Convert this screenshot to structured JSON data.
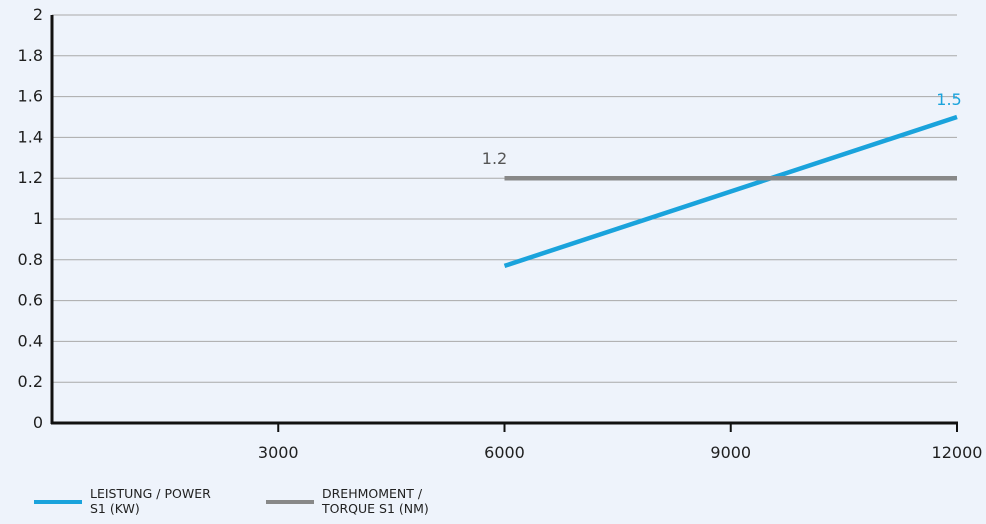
{
  "chart_data": {
    "type": "line",
    "xlim": [
      0,
      12000
    ],
    "ylim": [
      0,
      2
    ],
    "x_ticks": [
      3000,
      6000,
      9000,
      12000
    ],
    "x_tick_labels": [
      "3000",
      "6000",
      "9000",
      "12000"
    ],
    "y_ticks": [
      0,
      0.2,
      0.4,
      0.6,
      0.8,
      1,
      1.2,
      1.4,
      1.6,
      1.8,
      2
    ],
    "y_tick_labels": [
      "0",
      "0.2",
      "0.4",
      "0.6",
      "0.8",
      "1",
      "1.2",
      "1.4",
      "1.6",
      "1.8",
      "2"
    ],
    "grid": "horizontal",
    "legend_position": "bottom-left",
    "series": [
      {
        "name": "LEISTUNG / POWER S1 (KW)",
        "color": "#1aa3dc",
        "x": [
          6000,
          12000
        ],
        "y": [
          0.77,
          1.5
        ],
        "end_label": "1.5"
      },
      {
        "name": "DREHMOMENT / TORQUE S1 (NM)",
        "color": "#888888",
        "x": [
          6000,
          12000
        ],
        "y": [
          1.2,
          1.2
        ],
        "start_label": "1.2"
      }
    ]
  },
  "legend": {
    "items": [
      {
        "label": "LEISTUNG / POWER\nS1 (KW)",
        "color": "#1aa3dc"
      },
      {
        "label": "DREHMOMENT /\nTORQUE S1 (NM)",
        "color": "#888888"
      }
    ]
  }
}
